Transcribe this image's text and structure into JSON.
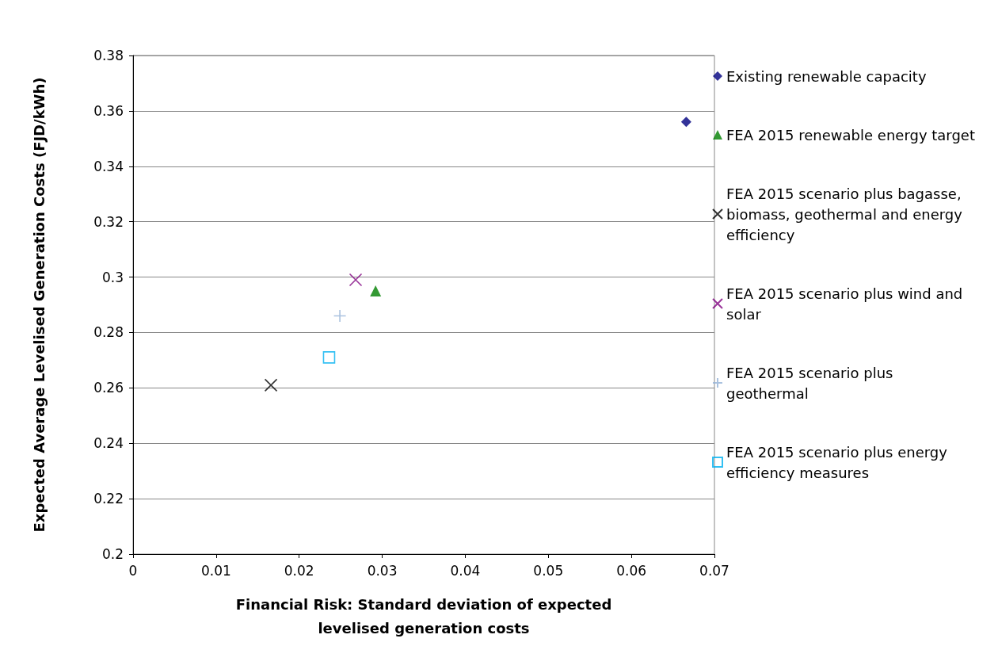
{
  "chart_data": {
    "type": "scatter",
    "xlabel": "Financial Risk: Standard deviation of expected\nlevelised generation costs",
    "ylabel": "Expected Average Levelised Generation Costs (FJD/kWh)",
    "xlim": [
      0,
      0.07
    ],
    "xticks": [
      0,
      0.01,
      0.02,
      0.03,
      0.04,
      0.05,
      0.06,
      0.07
    ],
    "ylim": [
      0.2,
      0.38
    ],
    "yticks": [
      0.2,
      0.22,
      0.24,
      0.26,
      0.28,
      0.3,
      0.32,
      0.34,
      0.36,
      0.38
    ],
    "grid": "y",
    "legend": "right",
    "series": [
      {
        "name": "Existing renewable capacity",
        "color": "#000080",
        "marker": "diamond",
        "x": [
          0.0666
        ],
        "values": [
          0.356
        ]
      },
      {
        "name": "FEA 2015 renewable energy target",
        "color": "#008000",
        "marker": "triangle",
        "x": [
          0.0292
        ],
        "values": [
          0.295
        ]
      },
      {
        "name": "FEA 2015 scenario plus bagasse, biomass, geothermal and energy efficiency",
        "color": "#000000",
        "marker": "cross",
        "x": [
          0.0166
        ],
        "values": [
          0.261
        ]
      },
      {
        "name": "FEA 2015 scenario plus wind and solar",
        "color": "#800080",
        "marker": "cross",
        "x": [
          0.0268
        ],
        "values": [
          0.299
        ]
      },
      {
        "name": "FEA 2015 scenario plus geothermal",
        "color": "#95b3d7",
        "marker": "plus",
        "x": [
          0.0249
        ],
        "values": [
          0.286
        ]
      },
      {
        "name": "FEA 2015 scenario plus energy efficiency measures",
        "color": "#00b0f0",
        "marker": "square",
        "x": [
          0.0236
        ],
        "values": [
          0.271
        ]
      }
    ]
  }
}
